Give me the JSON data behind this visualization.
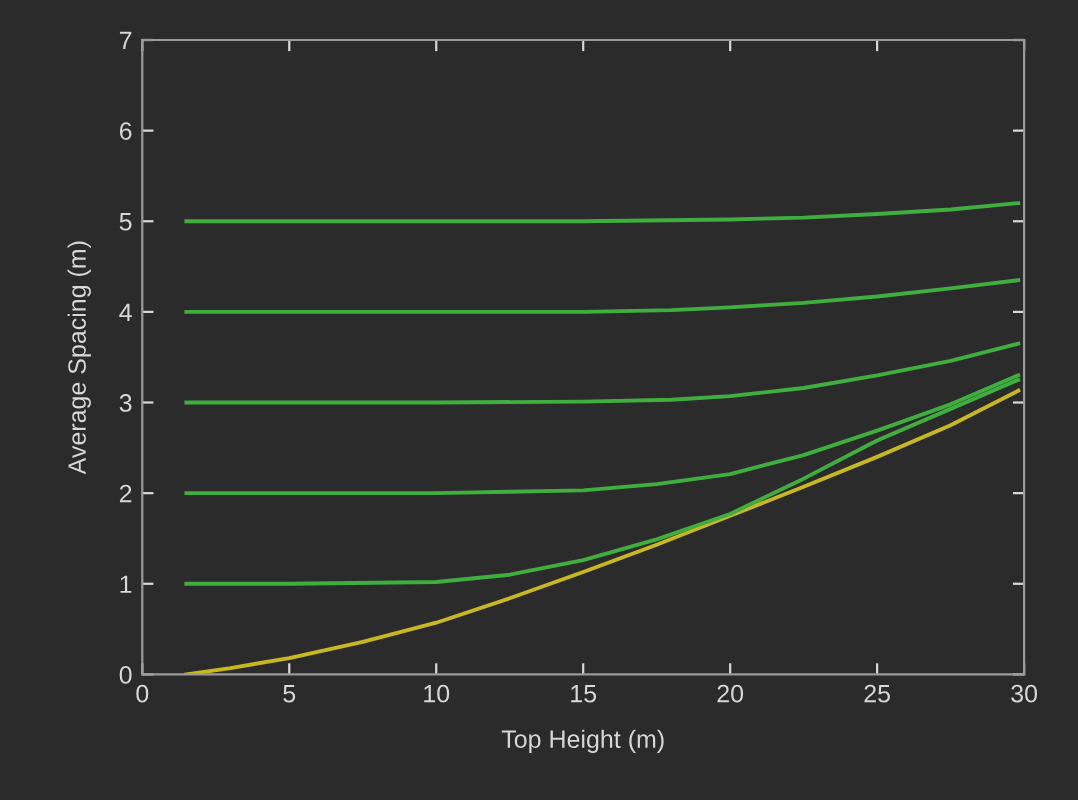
{
  "chart_data": {
    "type": "line",
    "xlabel": "Top Height (m)",
    "ylabel": "Average Spacing (m)",
    "xlim": [
      0,
      30
    ],
    "ylim": [
      0,
      7
    ],
    "xticks": [
      0,
      5,
      10,
      15,
      20,
      25,
      30
    ],
    "yticks": [
      0,
      1,
      2,
      3,
      4,
      5,
      6,
      7
    ],
    "grid": false,
    "marker": "none",
    "line_style": "solid",
    "series": [
      {
        "color": "#c8b820",
        "x": [
          1.5,
          3,
          5,
          7.5,
          10,
          12.5,
          15,
          17.5,
          20,
          22.5,
          25,
          27.5,
          29.8
        ],
        "values": [
          0,
          0.07,
          0.18,
          0.36,
          0.57,
          0.84,
          1.13,
          1.43,
          1.75,
          2.07,
          2.4,
          2.75,
          3.13
        ]
      },
      {
        "color": "#3fae3f",
        "x": [
          1.5,
          5,
          10,
          12.5,
          15,
          17.5,
          20,
          22.5,
          25,
          27.5,
          29.8
        ],
        "values": [
          1,
          1,
          1.02,
          1.1,
          1.26,
          1.49,
          1.77,
          2.16,
          2.58,
          2.93,
          3.25
        ]
      },
      {
        "color": "#3fae3f",
        "x": [
          1.5,
          5,
          10,
          15,
          17.5,
          20,
          22.5,
          25,
          27.5,
          29.8
        ],
        "values": [
          2,
          2,
          2,
          2.03,
          2.1,
          2.21,
          2.42,
          2.69,
          2.98,
          3.3
        ]
      },
      {
        "color": "#3fae3f",
        "x": [
          1.5,
          5,
          10,
          15,
          18,
          20,
          22.5,
          25,
          27.5,
          29.8
        ],
        "values": [
          3,
          3,
          3,
          3.01,
          3.03,
          3.07,
          3.16,
          3.3,
          3.46,
          3.65
        ]
      },
      {
        "color": "#3fae3f",
        "x": [
          1.5,
          5,
          10,
          15,
          18,
          20,
          22.5,
          25,
          27.5,
          29.8
        ],
        "values": [
          4,
          4,
          4,
          4,
          4.02,
          4.05,
          4.1,
          4.17,
          4.26,
          4.35
        ]
      },
      {
        "color": "#3fae3f",
        "x": [
          1.5,
          5,
          10,
          15,
          20,
          22.5,
          25,
          27.5,
          29.8
        ],
        "values": [
          5,
          5,
          5,
          5,
          5.02,
          5.04,
          5.08,
          5.13,
          5.2
        ]
      }
    ]
  }
}
